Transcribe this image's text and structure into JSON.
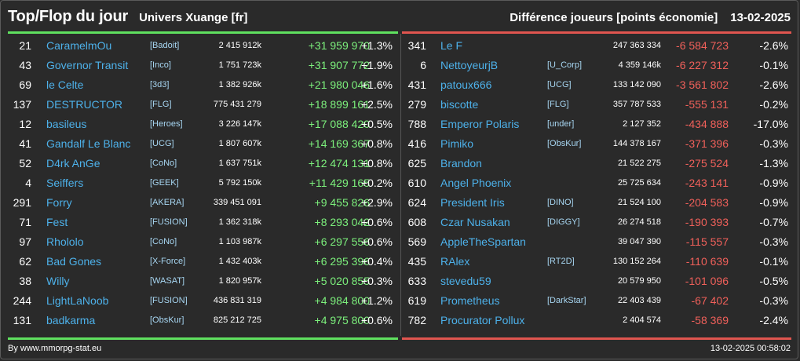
{
  "header": {
    "title": "Top/Flop du jour",
    "universe": "Univers Xuange [fr]",
    "metric": "Différence joueurs [points économie]",
    "date": "13-02-2025"
  },
  "colors": {
    "gain": "#7cf07c",
    "loss": "#f0605a",
    "player_name": "#4db1ea",
    "top_rule": "#5fe05f",
    "flop_rule": "#e0554f"
  },
  "top": [
    {
      "rank": "21",
      "name": "CaramelmOu",
      "alliance": "[Badoit]",
      "points": "2 415 912k",
      "diff": "+31 959 970",
      "pct": "+1.3%"
    },
    {
      "rank": "43",
      "name": "Governor Transit",
      "alliance": "[Inco]",
      "points": "1 751 723k",
      "diff": "+31 907 772",
      "pct": "+1.9%"
    },
    {
      "rank": "69",
      "name": "le Celte",
      "alliance": "[3d3]",
      "points": "1 382 926k",
      "diff": "+21 980 046",
      "pct": "+1.6%"
    },
    {
      "rank": "137",
      "name": "DESTRUCTOR",
      "alliance": "[FLG]",
      "points": "775 431 279",
      "diff": "+18 899 161",
      "pct": "+2.5%"
    },
    {
      "rank": "12",
      "name": "basileus",
      "alliance": "[Heroes]",
      "points": "3 226 147k",
      "diff": "+17 088 420",
      "pct": "+0.5%"
    },
    {
      "rank": "41",
      "name": "Gandalf Le Blanc",
      "alliance": "[UCG]",
      "points": "1 807 607k",
      "diff": "+14 169 367",
      "pct": "+0.8%"
    },
    {
      "rank": "52",
      "name": "D4rk AnGe",
      "alliance": "[CoNo]",
      "points": "1 637 751k",
      "diff": "+12 474 131",
      "pct": "+0.8%"
    },
    {
      "rank": "4",
      "name": "Seiffers",
      "alliance": "[GEEK]",
      "points": "5 792 150k",
      "diff": "+11 429 165",
      "pct": "+0.2%"
    },
    {
      "rank": "291",
      "name": "Forry",
      "alliance": "[AKERA]",
      "points": "339 451 091",
      "diff": "+9 455 826",
      "pct": "+2.9%"
    },
    {
      "rank": "71",
      "name": "Fest",
      "alliance": "[FUSION]",
      "points": "1 362 318k",
      "diff": "+8 293 042",
      "pct": "+0.6%"
    },
    {
      "rank": "97",
      "name": "Rhololo",
      "alliance": "[CoNo]",
      "points": "1 103 987k",
      "diff": "+6 297 556",
      "pct": "+0.6%"
    },
    {
      "rank": "62",
      "name": "Bad Gones",
      "alliance": "[X-Force]",
      "points": "1 432 403k",
      "diff": "+6 295 396",
      "pct": "+0.4%"
    },
    {
      "rank": "38",
      "name": "Willy",
      "alliance": "[WASAT]",
      "points": "1 820 957k",
      "diff": "+5 020 855",
      "pct": "+0.3%"
    },
    {
      "rank": "244",
      "name": "LightLaNoob",
      "alliance": "[FUSION]",
      "points": "436 831 319",
      "diff": "+4 984 800",
      "pct": "+1.2%"
    },
    {
      "rank": "131",
      "name": "badkarma",
      "alliance": "[ObsKur]",
      "points": "825 212 725",
      "diff": "+4 975 800",
      "pct": "+0.6%"
    }
  ],
  "flop": [
    {
      "rank": "341",
      "name": "Le F",
      "alliance": "",
      "points": "247 363 334",
      "diff": "-6 584 723",
      "pct": "-2.6%"
    },
    {
      "rank": "6",
      "name": "NettoyeurjB",
      "alliance": "[U_Corp]",
      "points": "4 359 146k",
      "diff": "-6 227 312",
      "pct": "-0.1%"
    },
    {
      "rank": "431",
      "name": "patoux666",
      "alliance": "[UCG]",
      "points": "133 142 090",
      "diff": "-3 561 802",
      "pct": "-2.6%"
    },
    {
      "rank": "279",
      "name": "biscotte",
      "alliance": "[FLG]",
      "points": "357 787 533",
      "diff": "-555 131",
      "pct": "-0.2%"
    },
    {
      "rank": "788",
      "name": "Emperor Polaris",
      "alliance": "[under]",
      "points": "2 127 352",
      "diff": "-434 888",
      "pct": "-17.0%"
    },
    {
      "rank": "416",
      "name": "Pimiko",
      "alliance": "[ObsKur]",
      "points": "144 378 167",
      "diff": "-371 396",
      "pct": "-0.3%"
    },
    {
      "rank": "625",
      "name": "Brandon",
      "alliance": "",
      "points": "21 522 275",
      "diff": "-275 524",
      "pct": "-1.3%"
    },
    {
      "rank": "610",
      "name": "Angel Phoenix",
      "alliance": "",
      "points": "25 725 634",
      "diff": "-243 141",
      "pct": "-0.9%"
    },
    {
      "rank": "624",
      "name": "President Iris",
      "alliance": "[DINO]",
      "points": "21 524 100",
      "diff": "-204 583",
      "pct": "-0.9%"
    },
    {
      "rank": "608",
      "name": "Czar Nusakan",
      "alliance": "[DIGGY]",
      "points": "26 274 518",
      "diff": "-190 393",
      "pct": "-0.7%"
    },
    {
      "rank": "569",
      "name": "AppleTheSpartan",
      "alliance": "",
      "points": "39 047 390",
      "diff": "-115 557",
      "pct": "-0.3%"
    },
    {
      "rank": "435",
      "name": "RAlex",
      "alliance": "[RT2D]",
      "points": "130 152 264",
      "diff": "-110 639",
      "pct": "-0.1%"
    },
    {
      "rank": "633",
      "name": "stevedu59",
      "alliance": "",
      "points": "20 579 950",
      "diff": "-101 096",
      "pct": "-0.5%"
    },
    {
      "rank": "619",
      "name": "Prometheus",
      "alliance": "[DarkStar]",
      "points": "22 403 439",
      "diff": "-67 402",
      "pct": "-0.3%"
    },
    {
      "rank": "782",
      "name": "Procurator Pollux",
      "alliance": "",
      "points": "2 404 574",
      "diff": "-58 369",
      "pct": "-2.4%"
    }
  ],
  "footer": {
    "credit": "By www.mmorpg-stat.eu",
    "timestamp": "13-02-2025 00:58:02"
  }
}
